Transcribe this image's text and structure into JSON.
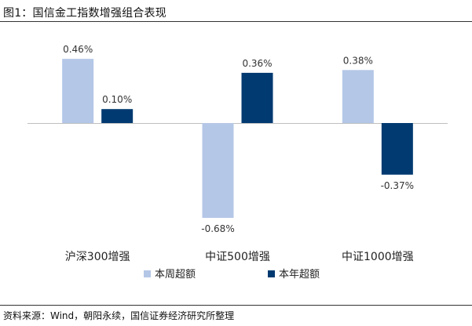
{
  "figure": {
    "title": "图1：国信金工指数增强组合表现",
    "source": "资料来源：Wind，朝阳永续，国信证券经济研究所整理"
  },
  "chart_data": {
    "type": "bar",
    "categories": [
      "沪深300增强",
      "中证500增强",
      "中证1000增强"
    ],
    "series": [
      {
        "name": "本周超额",
        "color": "#b4c7e7",
        "values": [
          0.46,
          -0.68,
          0.38
        ],
        "labels": [
          "0.46%",
          "-0.68%",
          "0.38%"
        ]
      },
      {
        "name": "本年超额",
        "color": "#003a70",
        "values": [
          0.1,
          0.36,
          -0.37
        ],
        "labels": [
          "0.10%",
          "0.36%",
          "-0.37%"
        ]
      }
    ],
    "ylim": [
      -0.75,
      0.5
    ],
    "unit": "%",
    "grid": false,
    "legend": "bottom-center"
  }
}
